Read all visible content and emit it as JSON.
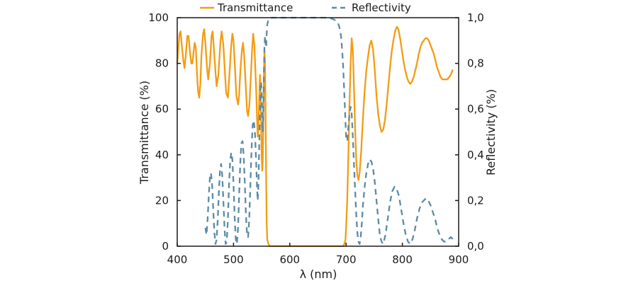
{
  "chart_data": {
    "type": "line",
    "title": "",
    "xlabel": "λ (nm)",
    "ylabel_left": "Transmittance (%)",
    "ylabel_right": "Reflectivity (%)",
    "xlim": [
      400,
      900
    ],
    "ylim_left": [
      0,
      100
    ],
    "ylim_right": [
      0,
      1
    ],
    "x_ticks": [
      "400",
      "500",
      "600",
      "700",
      "800",
      "900"
    ],
    "y_ticks_left": [
      "0",
      "20",
      "40",
      "60",
      "80",
      "100"
    ],
    "y_ticks_right": [
      "0,0",
      "0,2",
      "0,4",
      "0,6",
      "0,8",
      "1,0"
    ],
    "grid": false,
    "legend_position": "top-center",
    "series": [
      {
        "name": "Transmittance",
        "axis": "left",
        "style": "solid",
        "color": "#f39c12",
        "points": [
          [
            400,
            80
          ],
          [
            404,
            93
          ],
          [
            406,
            94
          ],
          [
            408,
            88
          ],
          [
            411,
            81
          ],
          [
            413,
            78
          ],
          [
            415,
            83
          ],
          [
            418,
            92
          ],
          [
            420,
            92
          ],
          [
            423,
            84
          ],
          [
            425,
            80
          ],
          [
            427,
            80
          ],
          [
            429,
            85
          ],
          [
            431,
            89
          ],
          [
            433,
            87
          ],
          [
            435,
            76
          ],
          [
            437,
            68
          ],
          [
            439,
            65
          ],
          [
            441,
            71
          ],
          [
            443,
            83
          ],
          [
            446,
            93
          ],
          [
            448,
            95
          ],
          [
            450,
            89
          ],
          [
            453,
            78
          ],
          [
            455,
            73
          ],
          [
            458,
            80
          ],
          [
            461,
            92
          ],
          [
            463,
            94
          ],
          [
            465,
            87
          ],
          [
            468,
            76
          ],
          [
            470,
            70
          ],
          [
            473,
            75
          ],
          [
            477,
            90
          ],
          [
            479,
            94
          ],
          [
            482,
            88
          ],
          [
            485,
            75
          ],
          [
            487,
            67
          ],
          [
            490,
            65
          ],
          [
            492,
            72
          ],
          [
            496,
            88
          ],
          [
            498,
            93
          ],
          [
            500,
            90
          ],
          [
            503,
            76
          ],
          [
            505,
            66
          ],
          [
            508,
            62
          ],
          [
            510,
            66
          ],
          [
            512,
            76
          ],
          [
            515,
            86
          ],
          [
            517,
            89
          ],
          [
            519,
            83
          ],
          [
            522,
            69
          ],
          [
            524,
            59
          ],
          [
            526,
            57
          ],
          [
            528,
            61
          ],
          [
            531,
            75
          ],
          [
            533,
            86
          ],
          [
            535,
            93
          ],
          [
            537,
            88
          ],
          [
            540,
            70
          ],
          [
            542,
            55
          ],
          [
            543,
            48
          ],
          [
            544,
            50
          ],
          [
            545,
            58
          ],
          [
            546,
            67
          ],
          [
            547,
            75
          ],
          [
            548,
            70
          ],
          [
            549,
            55
          ],
          [
            550,
            40
          ],
          [
            551,
            33
          ],
          [
            552,
            38
          ],
          [
            553,
            55
          ],
          [
            554,
            75
          ],
          [
            555,
            86
          ],
          [
            556,
            80
          ],
          [
            557,
            55
          ],
          [
            558,
            28
          ],
          [
            559,
            10
          ],
          [
            560,
            3
          ],
          [
            562,
            1
          ],
          [
            565,
            0
          ],
          [
            600,
            0
          ],
          [
            650,
            0
          ],
          [
            690,
            0
          ],
          [
            695,
            0
          ],
          [
            697,
            1
          ],
          [
            699,
            3
          ],
          [
            700,
            8
          ],
          [
            702,
            20
          ],
          [
            704,
            40
          ],
          [
            706,
            62
          ],
          [
            708,
            80
          ],
          [
            710,
            91
          ],
          [
            712,
            86
          ],
          [
            714,
            70
          ],
          [
            716,
            52
          ],
          [
            718,
            38
          ],
          [
            720,
            31
          ],
          [
            722,
            29
          ],
          [
            724,
            32
          ],
          [
            727,
            42
          ],
          [
            730,
            56
          ],
          [
            733,
            68
          ],
          [
            736,
            77
          ],
          [
            739,
            83
          ],
          [
            742,
            88
          ],
          [
            745,
            90
          ],
          [
            748,
            86
          ],
          [
            751,
            77
          ],
          [
            754,
            66
          ],
          [
            757,
            58
          ],
          [
            760,
            53
          ],
          [
            763,
            50
          ],
          [
            766,
            51
          ],
          [
            769,
            55
          ],
          [
            772,
            62
          ],
          [
            775,
            70
          ],
          [
            778,
            78
          ],
          [
            781,
            85
          ],
          [
            784,
            90
          ],
          [
            787,
            94
          ],
          [
            790,
            96
          ],
          [
            793,
            95
          ],
          [
            796,
            91
          ],
          [
            799,
            86
          ],
          [
            802,
            81
          ],
          [
            805,
            77
          ],
          [
            808,
            74
          ],
          [
            811,
            72
          ],
          [
            814,
            71
          ],
          [
            817,
            72
          ],
          [
            820,
            74
          ],
          [
            823,
            77
          ],
          [
            826,
            80
          ],
          [
            829,
            84
          ],
          [
            832,
            87
          ],
          [
            835,
            89
          ],
          [
            838,
            90
          ],
          [
            841,
            91
          ],
          [
            844,
            91
          ],
          [
            847,
            90
          ],
          [
            850,
            88
          ],
          [
            853,
            86
          ],
          [
            856,
            84
          ],
          [
            859,
            81
          ],
          [
            862,
            78
          ],
          [
            865,
            76
          ],
          [
            868,
            74
          ],
          [
            871,
            73
          ],
          [
            874,
            73
          ],
          [
            877,
            73
          ],
          [
            880,
            73
          ],
          [
            883,
            74
          ],
          [
            886,
            75
          ],
          [
            889,
            77
          ]
        ]
      },
      {
        "name": "Reflectivity",
        "axis": "right",
        "style": "dashed",
        "color": "#5b8ba5",
        "points": [
          [
            450,
            0.08
          ],
          [
            452,
            0.05
          ],
          [
            454,
            0.12
          ],
          [
            456,
            0.22
          ],
          [
            458,
            0.3
          ],
          [
            460,
            0.32
          ],
          [
            462,
            0.27
          ],
          [
            464,
            0.16
          ],
          [
            466,
            0.06
          ],
          [
            468,
            0.01
          ],
          [
            470,
            0.03
          ],
          [
            472,
            0.12
          ],
          [
            474,
            0.24
          ],
          [
            476,
            0.33
          ],
          [
            478,
            0.36
          ],
          [
            480,
            0.31
          ],
          [
            482,
            0.2
          ],
          [
            484,
            0.08
          ],
          [
            486,
            0.01
          ],
          [
            488,
            0.02
          ],
          [
            490,
            0.12
          ],
          [
            492,
            0.26
          ],
          [
            494,
            0.37
          ],
          [
            496,
            0.41
          ],
          [
            498,
            0.38
          ],
          [
            500,
            0.27
          ],
          [
            502,
            0.13
          ],
          [
            504,
            0.03
          ],
          [
            506,
            0.01
          ],
          [
            508,
            0.08
          ],
          [
            510,
            0.22
          ],
          [
            512,
            0.36
          ],
          [
            514,
            0.45
          ],
          [
            516,
            0.46
          ],
          [
            518,
            0.4
          ],
          [
            520,
            0.28
          ],
          [
            522,
            0.14
          ],
          [
            524,
            0.05
          ],
          [
            526,
            0.04
          ],
          [
            528,
            0.12
          ],
          [
            530,
            0.27
          ],
          [
            532,
            0.42
          ],
          [
            534,
            0.53
          ],
          [
            536,
            0.55
          ],
          [
            538,
            0.5
          ],
          [
            540,
            0.38
          ],
          [
            542,
            0.25
          ],
          [
            543,
            0.2
          ],
          [
            544,
            0.25
          ],
          [
            545,
            0.35
          ],
          [
            546,
            0.48
          ],
          [
            547,
            0.6
          ],
          [
            548,
            0.7
          ],
          [
            549,
            0.72
          ],
          [
            550,
            0.67
          ],
          [
            551,
            0.58
          ],
          [
            552,
            0.5
          ],
          [
            553,
            0.6
          ],
          [
            554,
            0.76
          ],
          [
            555,
            0.88
          ],
          [
            556,
            0.92
          ],
          [
            557,
            0.88
          ],
          [
            558,
            0.87
          ],
          [
            559,
            0.93
          ],
          [
            560,
            0.97
          ],
          [
            562,
            0.99
          ],
          [
            565,
            1.0
          ],
          [
            580,
            1.0
          ],
          [
            600,
            1.0
          ],
          [
            640,
            1.0
          ],
          [
            670,
            1.0
          ],
          [
            680,
            0.99
          ],
          [
            685,
            0.98
          ],
          [
            688,
            0.96
          ],
          [
            691,
            0.92
          ],
          [
            693,
            0.86
          ],
          [
            695,
            0.78
          ],
          [
            697,
            0.66
          ],
          [
            699,
            0.54
          ],
          [
            700,
            0.48
          ],
          [
            702,
            0.46
          ],
          [
            704,
            0.52
          ],
          [
            706,
            0.58
          ],
          [
            708,
            0.61
          ],
          [
            710,
            0.58
          ],
          [
            712,
            0.48
          ],
          [
            714,
            0.36
          ],
          [
            716,
            0.25
          ],
          [
            718,
            0.14
          ],
          [
            720,
            0.06
          ],
          [
            722,
            0.02
          ],
          [
            724,
            0.01
          ],
          [
            726,
            0.04
          ],
          [
            728,
            0.1
          ],
          [
            730,
            0.18
          ],
          [
            733,
            0.26
          ],
          [
            736,
            0.32
          ],
          [
            739,
            0.36
          ],
          [
            742,
            0.38
          ],
          [
            745,
            0.37
          ],
          [
            748,
            0.34
          ],
          [
            751,
            0.28
          ],
          [
            754,
            0.2
          ],
          [
            757,
            0.12
          ],
          [
            760,
            0.05
          ],
          [
            763,
            0.02
          ],
          [
            766,
            0.01
          ],
          [
            770,
            0.05
          ],
          [
            774,
            0.12
          ],
          [
            778,
            0.19
          ],
          [
            782,
            0.24
          ],
          [
            786,
            0.26
          ],
          [
            790,
            0.25
          ],
          [
            794,
            0.22
          ],
          [
            798,
            0.16
          ],
          [
            802,
            0.1
          ],
          [
            806,
            0.05
          ],
          [
            810,
            0.02
          ],
          [
            814,
            0.01
          ],
          [
            818,
            0.03
          ],
          [
            822,
            0.07
          ],
          [
            826,
            0.12
          ],
          [
            830,
            0.16
          ],
          [
            834,
            0.19
          ],
          [
            838,
            0.2
          ],
          [
            842,
            0.21
          ],
          [
            846,
            0.2
          ],
          [
            850,
            0.18
          ],
          [
            854,
            0.15
          ],
          [
            858,
            0.12
          ],
          [
            862,
            0.08
          ],
          [
            866,
            0.05
          ],
          [
            870,
            0.03
          ],
          [
            874,
            0.02
          ],
          [
            878,
            0.02
          ],
          [
            882,
            0.03
          ],
          [
            886,
            0.04
          ],
          [
            890,
            0.03
          ]
        ]
      }
    ]
  }
}
